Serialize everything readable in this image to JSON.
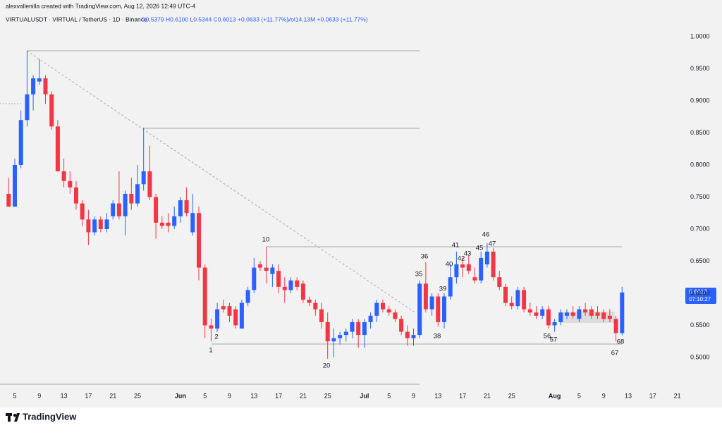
{
  "header": {
    "credit": "alexvallenilla created with TradingView.com, Aug 12, 2026 12:49 UTC-4",
    "symbol": "VIRTUALUSDT · VIRTUAL / TetherUS · 1D · Binance",
    "ohlc": "O0.5379 H0.6100 L0.5344 C0.6013 +0.0633 (+11.77%)",
    "volume": "Vol14.13M +0.0633 (+11.77%)"
  },
  "brand": "TradingView",
  "chart_data": {
    "type": "candlestick",
    "up_color": "#2962ff",
    "down_color": "#f23645",
    "grid": false,
    "ylim": [
      0.4582,
      1.0571
    ],
    "yticks": [
      {
        "value": 0.5,
        "label": "0.5000"
      },
      {
        "value": 0.55,
        "label": "0.5500"
      },
      {
        "value": 0.6,
        "label": "0.6000"
      },
      {
        "value": 0.65,
        "label": "0.6500"
      },
      {
        "value": 0.7,
        "label": "0.7000"
      },
      {
        "value": 0.75,
        "label": "0.7500"
      },
      {
        "value": 0.8,
        "label": "0.8000"
      },
      {
        "value": 0.85,
        "label": "0.8500"
      },
      {
        "value": 0.9,
        "label": "0.9000"
      },
      {
        "value": 0.95,
        "label": "0.9500"
      },
      {
        "value": 1.0,
        "label": "1.0000"
      }
    ],
    "categories": [
      null,
      "5",
      null,
      null,
      null,
      "9",
      null,
      null,
      null,
      "13",
      null,
      null,
      null,
      "17",
      null,
      null,
      null,
      "21",
      null,
      null,
      null,
      "25",
      null,
      null,
      null,
      null,
      null,
      null,
      "Jun",
      null,
      null,
      null,
      "5",
      null,
      null,
      null,
      "9",
      null,
      null,
      null,
      "13",
      null,
      null,
      null,
      "17",
      null,
      null,
      null,
      "21",
      null,
      null,
      null,
      "25",
      null,
      null,
      null,
      null,
      null,
      "Jul",
      null,
      null,
      null,
      "5",
      null,
      null,
      null,
      "9",
      null,
      null,
      null,
      "13",
      null,
      null,
      null,
      "17",
      null,
      null,
      null,
      "21",
      null,
      null,
      null,
      "25",
      null,
      null,
      null,
      null,
      null,
      null,
      "Aug",
      null,
      null,
      null,
      "5",
      null,
      null,
      null,
      "9",
      null,
      null,
      null,
      "13",
      null,
      null,
      null,
      "17",
      null,
      null,
      null,
      "21"
    ],
    "open": [
      0.755,
      0.735,
      0.8,
      0.87,
      0.91,
      0.93,
      0.935,
      0.91,
      0.86,
      0.79,
      0.775,
      0.765,
      0.74,
      0.715,
      0.695,
      0.715,
      0.7,
      0.72,
      0.74,
      0.72,
      0.755,
      0.74,
      0.77,
      0.79,
      0.75,
      0.71,
      0.71,
      0.705,
      0.72,
      0.745,
      0.695,
      0.725,
      0.64,
      0.55,
      0.545,
      0.58,
      0.58,
      0.575,
      0.545,
      0.585,
      0.605,
      0.645,
      0.64,
      0.63,
      0.635,
      0.61,
      0.605,
      0.62,
      0.615,
      0.59,
      0.585,
      0.575,
      0.555,
      0.525,
      0.53,
      0.535,
      0.54,
      0.555,
      0.535,
      0.555,
      0.565,
      0.585,
      0.575,
      0.57,
      0.56,
      0.54,
      0.53,
      0.535,
      0.615,
      0.575,
      0.595,
      0.555,
      0.595,
      0.625,
      0.645,
      0.645,
      0.625,
      0.62,
      0.645,
      0.665,
      0.625,
      0.61,
      0.585,
      0.58,
      0.605,
      0.575,
      0.57,
      0.565,
      0.575,
      0.55,
      0.555,
      0.565,
      0.57,
      0.56,
      0.575,
      0.575,
      0.57,
      0.57,
      0.565,
      0.56,
      0.5379,
      null,
      null,
      null,
      null,
      null,
      null,
      null,
      null,
      null
    ],
    "high": [
      0.78,
      0.81,
      0.885,
      0.978,
      0.94,
      0.965,
      0.94,
      0.915,
      0.87,
      0.81,
      0.79,
      0.775,
      0.745,
      0.73,
      0.72,
      0.72,
      0.725,
      0.745,
      0.79,
      0.76,
      0.78,
      0.8,
      0.858,
      0.83,
      0.755,
      0.72,
      0.725,
      0.735,
      0.75,
      0.765,
      0.755,
      0.735,
      0.645,
      0.56,
      0.585,
      0.59,
      0.585,
      0.58,
      0.59,
      0.61,
      0.655,
      0.65,
      0.672,
      0.645,
      0.645,
      0.625,
      0.625,
      0.625,
      0.62,
      0.595,
      0.59,
      0.585,
      0.57,
      0.545,
      0.54,
      0.545,
      0.56,
      0.56,
      0.56,
      0.57,
      0.59,
      0.59,
      0.58,
      0.575,
      0.565,
      0.55,
      0.545,
      0.62,
      0.648,
      0.6,
      0.6,
      0.6,
      0.645,
      0.665,
      0.655,
      0.66,
      0.64,
      0.665,
      0.678,
      0.67,
      0.635,
      0.615,
      0.595,
      0.61,
      0.61,
      0.585,
      0.58,
      0.58,
      0.58,
      0.56,
      0.575,
      0.575,
      0.58,
      0.58,
      0.585,
      0.58,
      0.58,
      0.575,
      0.575,
      0.565,
      0.61,
      null,
      null,
      null,
      null,
      null,
      null,
      null,
      null,
      null
    ],
    "low": [
      0.735,
      0.735,
      0.795,
      0.86,
      0.885,
      0.925,
      0.895,
      0.855,
      0.79,
      0.765,
      0.755,
      0.73,
      0.705,
      0.675,
      0.69,
      0.695,
      0.695,
      0.715,
      0.715,
      0.69,
      0.73,
      0.735,
      0.76,
      0.745,
      0.685,
      0.7,
      0.695,
      0.7,
      0.71,
      0.72,
      0.69,
      0.62,
      0.53,
      0.525,
      0.54,
      0.57,
      0.555,
      0.545,
      0.545,
      0.58,
      0.6,
      0.635,
      0.615,
      0.61,
      0.6,
      0.585,
      0.6,
      0.605,
      0.585,
      0.58,
      0.565,
      0.545,
      0.498,
      0.5,
      0.52,
      0.525,
      0.53,
      0.515,
      0.515,
      0.545,
      0.555,
      0.57,
      0.565,
      0.555,
      0.535,
      0.518,
      0.518,
      0.53,
      0.57,
      0.565,
      0.548,
      0.545,
      0.59,
      0.615,
      0.625,
      0.63,
      0.615,
      0.615,
      0.64,
      0.62,
      0.605,
      0.58,
      0.575,
      0.575,
      0.57,
      0.565,
      0.56,
      0.56,
      0.545,
      0.54,
      0.55,
      0.56,
      0.56,
      0.555,
      0.565,
      0.56,
      0.56,
      0.555,
      0.555,
      0.525,
      0.5344,
      null,
      null,
      null,
      null,
      null,
      null,
      null,
      null,
      null
    ],
    "close": [
      0.735,
      0.8,
      0.87,
      0.91,
      0.935,
      0.935,
      0.91,
      0.86,
      0.79,
      0.775,
      0.765,
      0.74,
      0.715,
      0.695,
      0.715,
      0.7,
      0.715,
      0.74,
      0.72,
      0.755,
      0.74,
      0.77,
      0.79,
      0.75,
      0.71,
      0.705,
      0.705,
      0.72,
      0.745,
      0.725,
      0.725,
      0.64,
      0.55,
      0.545,
      0.575,
      0.575,
      0.565,
      0.55,
      0.585,
      0.605,
      0.64,
      0.64,
      0.635,
      0.64,
      0.61,
      0.605,
      0.62,
      0.61,
      0.59,
      0.585,
      0.575,
      0.555,
      0.525,
      0.53,
      0.535,
      0.54,
      0.555,
      0.535,
      0.555,
      0.565,
      0.585,
      0.575,
      0.57,
      0.56,
      0.54,
      0.53,
      0.535,
      0.615,
      0.575,
      0.595,
      0.555,
      0.595,
      0.625,
      0.645,
      0.64,
      0.635,
      0.62,
      0.655,
      0.665,
      0.625,
      0.61,
      0.585,
      0.58,
      0.605,
      0.575,
      0.57,
      0.565,
      0.575,
      0.55,
      0.555,
      0.57,
      0.57,
      0.565,
      0.575,
      0.57,
      0.565,
      0.565,
      0.56,
      0.56,
      0.538,
      0.6013,
      null,
      null,
      null,
      null,
      null,
      null,
      null,
      null,
      null
    ],
    "countdown": "07:10:27",
    "annotations": [
      "1",
      "2",
      "10",
      "20",
      "35",
      "36",
      "38",
      "39",
      "40",
      "41",
      "42",
      "43",
      "45",
      "46",
      "47",
      "56",
      "57",
      "67",
      "68"
    ]
  }
}
